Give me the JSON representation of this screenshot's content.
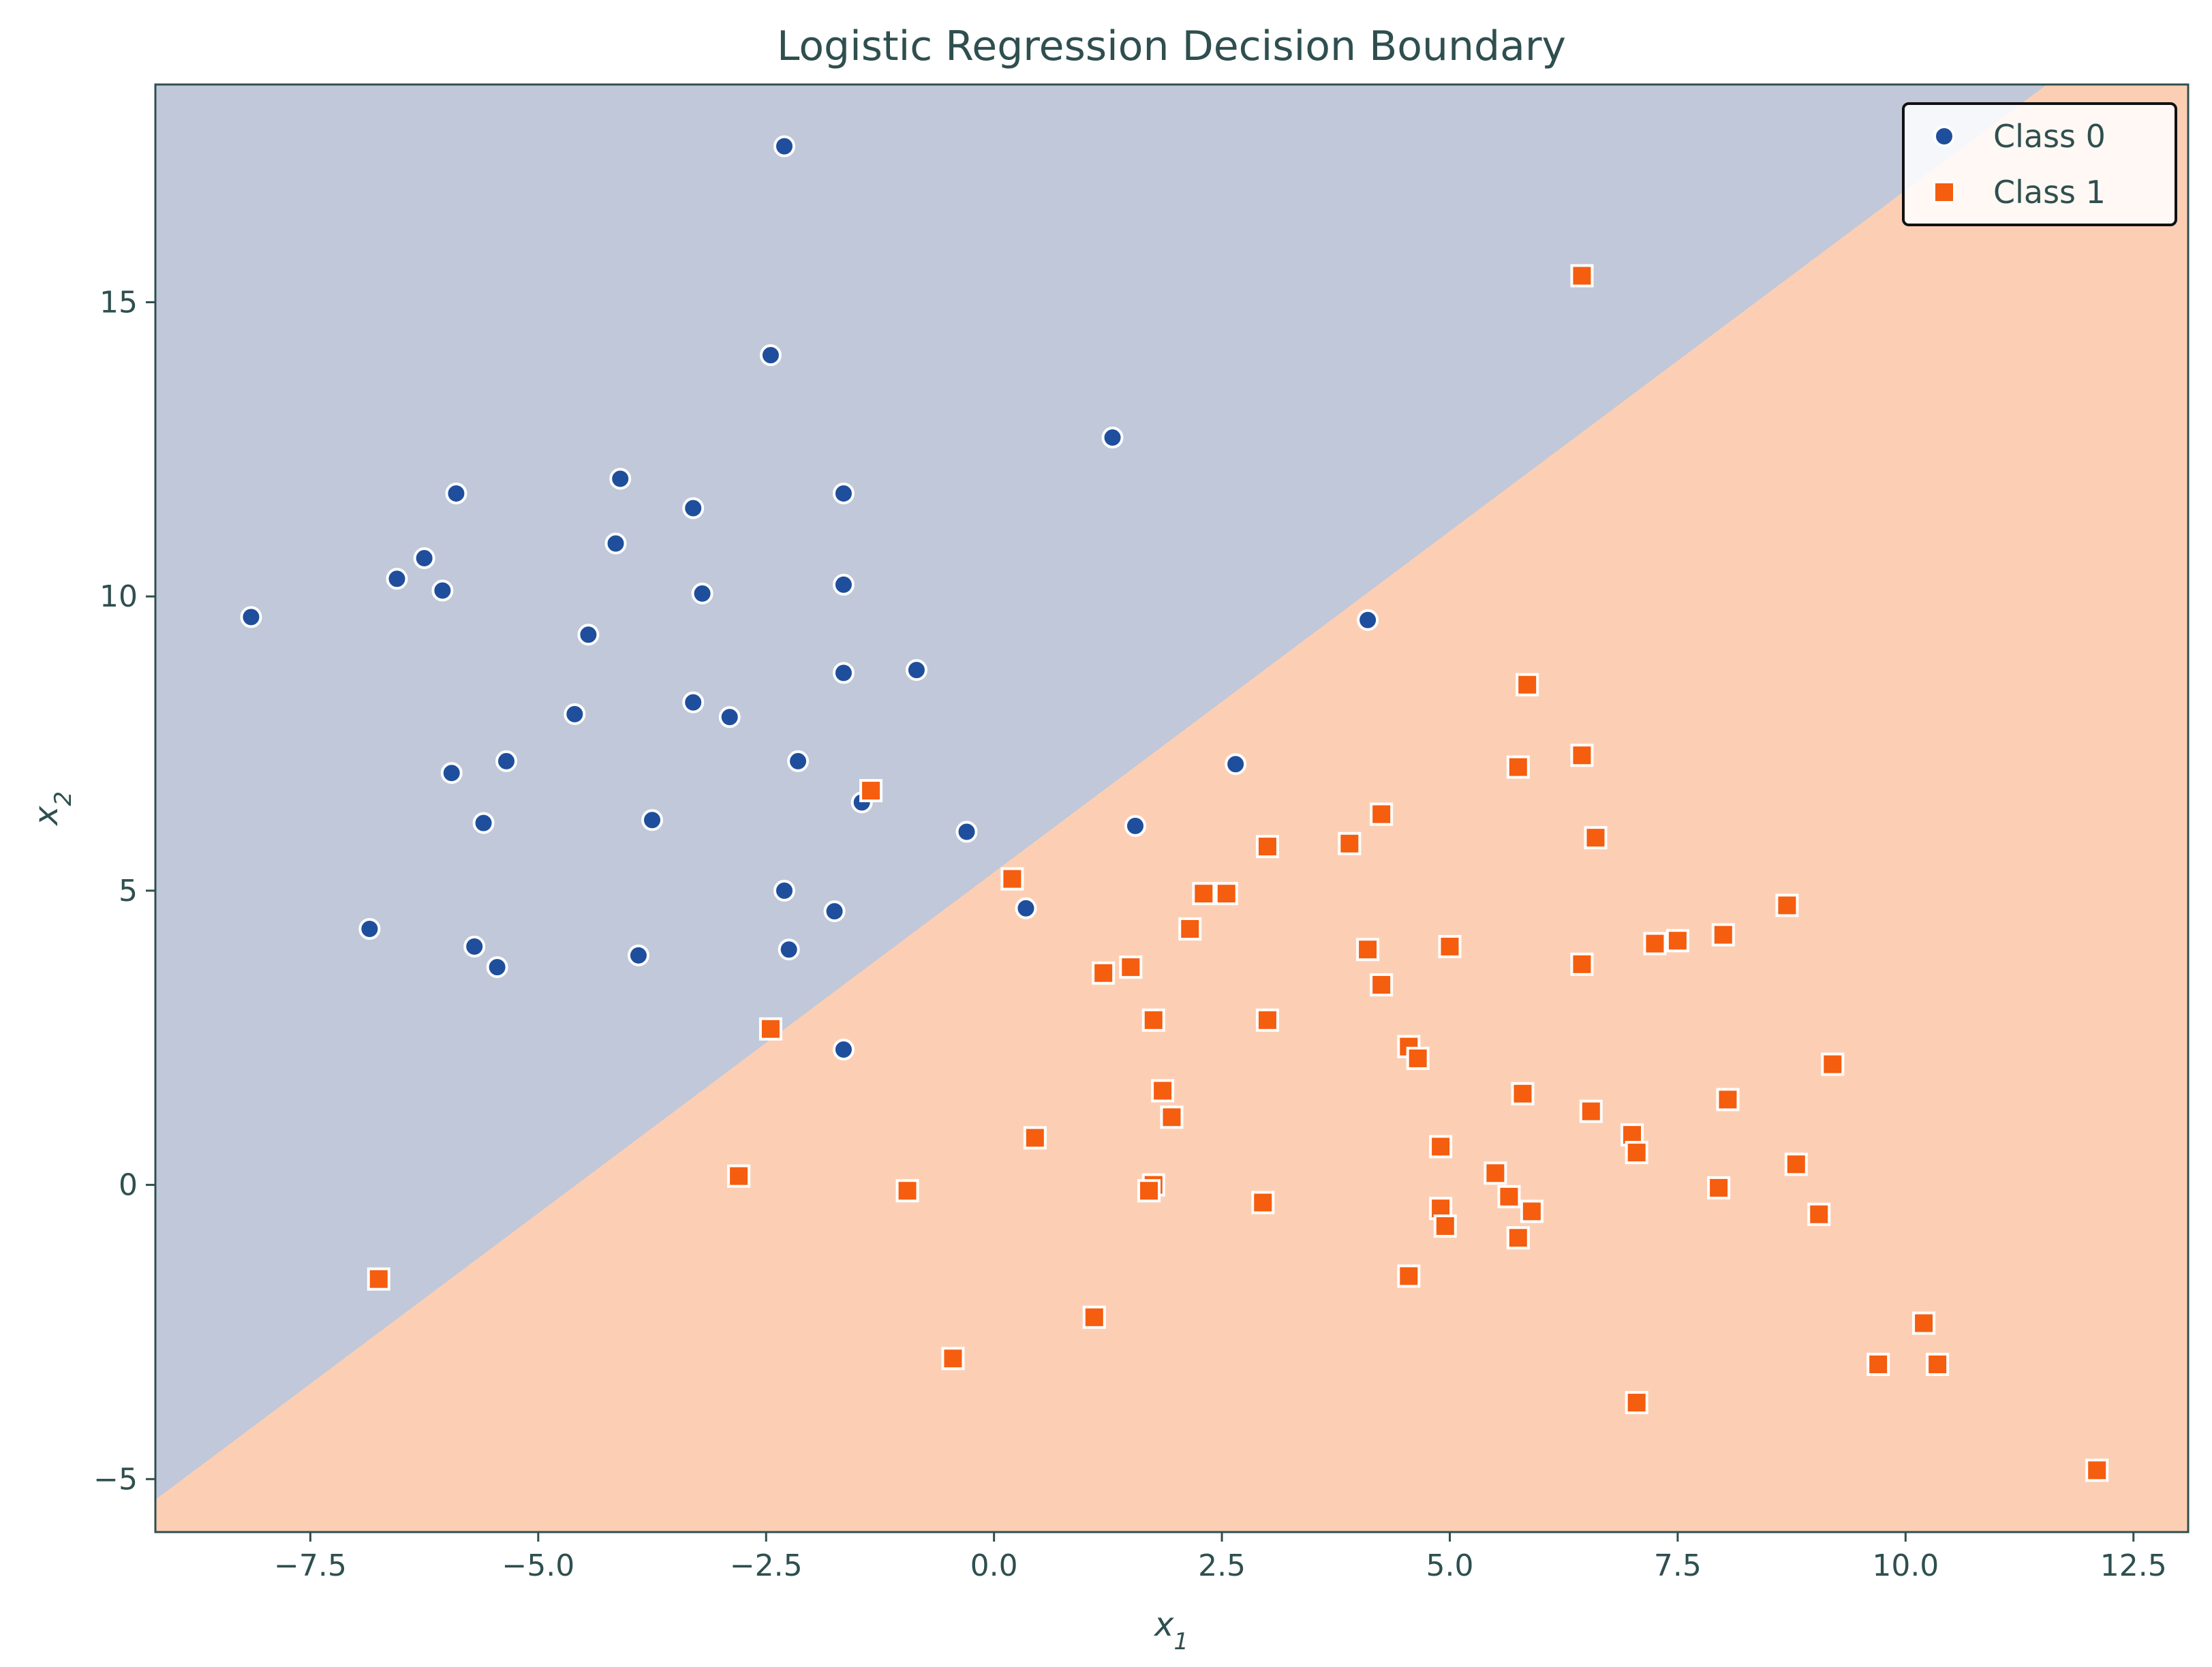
{
  "chart_data": {
    "type": "scatter",
    "title": "Logistic Regression Decision Boundary",
    "xlabel": "x",
    "xlabel_sub": "1",
    "ylabel": "x",
    "ylabel_sub": "2",
    "xlim": [
      -9.2,
      13.1
    ],
    "ylim": [
      -5.9,
      18.7
    ],
    "xticks": [
      -7.5,
      -5.0,
      -2.5,
      0.0,
      2.5,
      5.0,
      7.5,
      10.0,
      12.5
    ],
    "xtick_labels": [
      "−7.5",
      "−5.0",
      "−2.5",
      "0.0",
      "2.5",
      "5.0",
      "7.5",
      "10.0",
      "12.5"
    ],
    "yticks": [
      -5,
      0,
      5,
      10,
      15
    ],
    "ytick_labels": [
      "−5",
      "0",
      "5",
      "10",
      "15"
    ],
    "grid": false,
    "legend_position": "top-right",
    "decision_boundary": {
      "points": [
        [
          -9.2,
          -5.35
        ],
        [
          11.55,
          18.7
        ]
      ],
      "class0_region_color": "#c0c8d9",
      "class1_region_color": "#fccfb4"
    },
    "series": [
      {
        "name": "Class 0",
        "marker": "circle",
        "color": "#1f4e9c",
        "points": [
          [
            -2.3,
            17.65
          ],
          [
            -2.45,
            14.1
          ],
          [
            1.3,
            12.7
          ],
          [
            -4.1,
            12.0
          ],
          [
            -5.9,
            11.75
          ],
          [
            -1.65,
            11.75
          ],
          [
            -3.3,
            11.5
          ],
          [
            -4.15,
            10.9
          ],
          [
            -6.25,
            10.65
          ],
          [
            -6.55,
            10.3
          ],
          [
            -6.05,
            10.1
          ],
          [
            -1.65,
            10.2
          ],
          [
            -3.2,
            10.05
          ],
          [
            -8.15,
            9.65
          ],
          [
            4.1,
            9.6
          ],
          [
            -4.45,
            9.35
          ],
          [
            -1.65,
            8.7
          ],
          [
            -0.85,
            8.75
          ],
          [
            -3.3,
            8.2
          ],
          [
            -4.6,
            8.0
          ],
          [
            -2.9,
            7.95
          ],
          [
            -5.35,
            7.2
          ],
          [
            -2.15,
            7.2
          ],
          [
            2.65,
            7.15
          ],
          [
            -5.95,
            7.0
          ],
          [
            -1.45,
            6.5
          ],
          [
            -5.6,
            6.15
          ],
          [
            -3.75,
            6.2
          ],
          [
            1.55,
            6.1
          ],
          [
            -0.3,
            6.0
          ],
          [
            -2.3,
            5.0
          ],
          [
            -1.75,
            4.65
          ],
          [
            0.35,
            4.7
          ],
          [
            -6.85,
            4.35
          ],
          [
            -5.7,
            4.05
          ],
          [
            -2.25,
            4.0
          ],
          [
            -3.9,
            3.9
          ],
          [
            -5.45,
            3.7
          ],
          [
            -1.65,
            2.3
          ]
        ]
      },
      {
        "name": "Class 1",
        "marker": "square",
        "color": "#f55d0f",
        "points": [
          [
            6.45,
            15.45
          ],
          [
            5.85,
            8.5
          ],
          [
            5.75,
            7.1
          ],
          [
            6.45,
            7.3
          ],
          [
            -1.35,
            6.7
          ],
          [
            4.25,
            6.3
          ],
          [
            6.6,
            5.9
          ],
          [
            3.0,
            5.75
          ],
          [
            3.9,
            5.8
          ],
          [
            0.2,
            5.2
          ],
          [
            2.3,
            4.95
          ],
          [
            2.55,
            4.95
          ],
          [
            8.7,
            4.75
          ],
          [
            2.15,
            4.35
          ],
          [
            7.25,
            4.1
          ],
          [
            7.5,
            4.15
          ],
          [
            8.0,
            4.25
          ],
          [
            4.1,
            4.0
          ],
          [
            5.0,
            4.05
          ],
          [
            6.45,
            3.75
          ],
          [
            1.2,
            3.6
          ],
          [
            1.5,
            3.7
          ],
          [
            4.25,
            3.4
          ],
          [
            1.75,
            2.8
          ],
          [
            3.0,
            2.8
          ],
          [
            -2.45,
            2.65
          ],
          [
            4.55,
            2.35
          ],
          [
            4.65,
            2.15
          ],
          [
            9.2,
            2.05
          ],
          [
            1.85,
            1.6
          ],
          [
            5.8,
            1.55
          ],
          [
            8.05,
            1.45
          ],
          [
            6.55,
            1.25
          ],
          [
            1.95,
            1.15
          ],
          [
            0.45,
            0.8
          ],
          [
            7.0,
            0.85
          ],
          [
            4.9,
            0.65
          ],
          [
            7.05,
            0.55
          ],
          [
            8.8,
            0.35
          ],
          [
            5.5,
            0.2
          ],
          [
            -2.8,
            0.15
          ],
          [
            1.75,
            0.0
          ],
          [
            -0.95,
            -0.1
          ],
          [
            1.7,
            -0.1
          ],
          [
            7.95,
            -0.05
          ],
          [
            5.65,
            -0.2
          ],
          [
            2.95,
            -0.3
          ],
          [
            4.9,
            -0.4
          ],
          [
            5.9,
            -0.45
          ],
          [
            9.05,
            -0.5
          ],
          [
            4.95,
            -0.7
          ],
          [
            5.75,
            -0.9
          ],
          [
            -6.75,
            -1.6
          ],
          [
            4.55,
            -1.55
          ],
          [
            1.1,
            -2.25
          ],
          [
            10.2,
            -2.35
          ],
          [
            -0.45,
            -2.95
          ],
          [
            9.7,
            -3.05
          ],
          [
            10.35,
            -3.05
          ],
          [
            7.05,
            -3.7
          ],
          [
            12.1,
            -4.85
          ]
        ]
      }
    ]
  }
}
